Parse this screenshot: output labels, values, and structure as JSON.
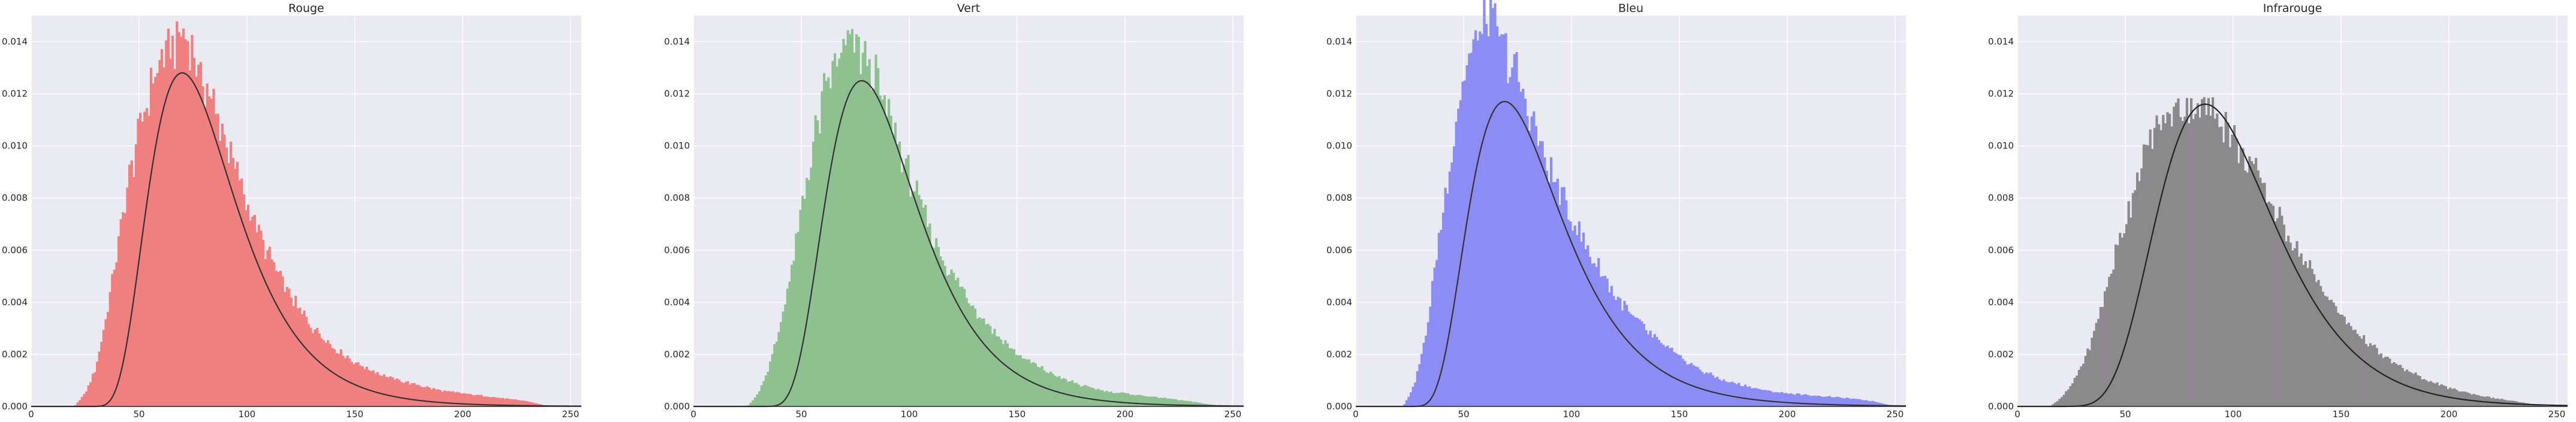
{
  "chart_data": [
    {
      "type": "histogram",
      "title": "Rouge",
      "color": "#f08080",
      "curve_color": "#333333",
      "xlim": [
        0,
        255
      ],
      "ylim": [
        0,
        0.015
      ],
      "xticks": [
        0,
        50,
        100,
        150,
        200,
        250
      ],
      "yticks": [
        0.0,
        0.002,
        0.004,
        0.006,
        0.008,
        0.01,
        0.012,
        0.014
      ],
      "xtick_labels": [
        "0",
        "50",
        "100",
        "150",
        "200",
        "250"
      ],
      "ytick_labels": [
        "0.000",
        "0.002",
        "0.004",
        "0.006",
        "0.008",
        "0.010",
        "0.012",
        "0.014"
      ],
      "grid": true,
      "histogram_range": [
        20,
        240
      ],
      "fit_curve": {
        "mode": 70,
        "peak": 0.0128,
        "sigma": 0.42,
        "start": 22
      },
      "hist_envelope": [
        [
          20,
          0.0
        ],
        [
          25,
          0.0005
        ],
        [
          30,
          0.0015
        ],
        [
          35,
          0.0035
        ],
        [
          40,
          0.006
        ],
        [
          45,
          0.0085
        ],
        [
          50,
          0.0105
        ],
        [
          55,
          0.0122
        ],
        [
          60,
          0.0133
        ],
        [
          65,
          0.014
        ],
        [
          70,
          0.0142
        ],
        [
          75,
          0.0135
        ],
        [
          80,
          0.0125
        ],
        [
          85,
          0.0115
        ],
        [
          90,
          0.0102
        ],
        [
          95,
          0.009
        ],
        [
          100,
          0.0078
        ],
        [
          110,
          0.0058
        ],
        [
          120,
          0.0042
        ],
        [
          130,
          0.0031
        ],
        [
          140,
          0.0023
        ],
        [
          150,
          0.0017
        ],
        [
          160,
          0.0013
        ],
        [
          170,
          0.001
        ],
        [
          180,
          0.0008
        ],
        [
          190,
          0.0006
        ],
        [
          200,
          0.0005
        ],
        [
          210,
          0.0004
        ],
        [
          220,
          0.0003
        ],
        [
          230,
          0.0002
        ],
        [
          240,
          0.0
        ]
      ]
    },
    {
      "type": "histogram",
      "title": "Vert",
      "color": "#8fc08f",
      "curve_color": "#333333",
      "xlim": [
        0,
        255
      ],
      "ylim": [
        0,
        0.015
      ],
      "xticks": [
        0,
        50,
        100,
        150,
        200,
        250
      ],
      "yticks": [
        0.0,
        0.002,
        0.004,
        0.006,
        0.008,
        0.01,
        0.012,
        0.014
      ],
      "xtick_labels": [
        "0",
        "50",
        "100",
        "150",
        "200",
        "250"
      ],
      "ytick_labels": [
        "0.000",
        "0.002",
        "0.004",
        "0.006",
        "0.008",
        "0.010",
        "0.012",
        "0.014"
      ],
      "grid": true,
      "histogram_range": [
        25,
        245
      ],
      "fit_curve": {
        "mode": 78,
        "peak": 0.0125,
        "sigma": 0.4,
        "start": 25
      },
      "hist_envelope": [
        [
          25,
          0.0
        ],
        [
          30,
          0.0005
        ],
        [
          35,
          0.0015
        ],
        [
          40,
          0.003
        ],
        [
          45,
          0.005
        ],
        [
          50,
          0.0075
        ],
        [
          55,
          0.0098
        ],
        [
          60,
          0.0118
        ],
        [
          65,
          0.013
        ],
        [
          70,
          0.0138
        ],
        [
          75,
          0.0139
        ],
        [
          80,
          0.0133
        ],
        [
          85,
          0.0124
        ],
        [
          90,
          0.0113
        ],
        [
          95,
          0.01
        ],
        [
          100,
          0.0088
        ],
        [
          110,
          0.0067
        ],
        [
          120,
          0.005
        ],
        [
          130,
          0.0038
        ],
        [
          140,
          0.0028
        ],
        [
          150,
          0.002
        ],
        [
          160,
          0.0015
        ],
        [
          170,
          0.0011
        ],
        [
          180,
          0.0008
        ],
        [
          190,
          0.0006
        ],
        [
          200,
          0.0005
        ],
        [
          210,
          0.0004
        ],
        [
          220,
          0.0003
        ],
        [
          230,
          0.0002
        ],
        [
          245,
          0.0
        ]
      ]
    },
    {
      "type": "histogram",
      "title": "Bleu",
      "color": "#8c8cf5",
      "curve_color": "#333333",
      "xlim": [
        0,
        255
      ],
      "ylim": [
        0,
        0.015
      ],
      "xticks": [
        0,
        50,
        100,
        150,
        200,
        250
      ],
      "yticks": [
        0.0,
        0.002,
        0.004,
        0.006,
        0.008,
        0.01,
        0.012,
        0.014
      ],
      "xtick_labels": [
        "0",
        "50",
        "100",
        "150",
        "200",
        "250"
      ],
      "ytick_labels": [
        "0.000",
        "0.002",
        "0.004",
        "0.006",
        "0.008",
        "0.010",
        "0.012",
        "0.014"
      ],
      "grid": true,
      "histogram_range": [
        22,
        250
      ],
      "fit_curve": {
        "mode": 69,
        "peak": 0.0117,
        "sigma": 0.44,
        "start": 20
      },
      "hist_envelope": [
        [
          22,
          0.0
        ],
        [
          27,
          0.0008
        ],
        [
          32,
          0.0025
        ],
        [
          37,
          0.0055
        ],
        [
          42,
          0.0085
        ],
        [
          47,
          0.0112
        ],
        [
          52,
          0.0132
        ],
        [
          57,
          0.0145
        ],
        [
          62,
          0.0148
        ],
        [
          67,
          0.0142
        ],
        [
          72,
          0.0132
        ],
        [
          77,
          0.012
        ],
        [
          82,
          0.0108
        ],
        [
          87,
          0.0097
        ],
        [
          92,
          0.0086
        ],
        [
          100,
          0.0072
        ],
        [
          110,
          0.0056
        ],
        [
          120,
          0.0043
        ],
        [
          130,
          0.0033
        ],
        [
          140,
          0.0025
        ],
        [
          150,
          0.0019
        ],
        [
          160,
          0.0014
        ],
        [
          170,
          0.001
        ],
        [
          180,
          0.0008
        ],
        [
          190,
          0.0006
        ],
        [
          200,
          0.0005
        ],
        [
          215,
          0.0004
        ],
        [
          230,
          0.0003
        ],
        [
          240,
          0.0002
        ],
        [
          250,
          0.0
        ]
      ]
    },
    {
      "type": "histogram",
      "title": "Infrarouge",
      "color": "#8b898b",
      "curve_color": "#222222",
      "xlim": [
        0,
        255
      ],
      "ylim": [
        0,
        0.015
      ],
      "xticks": [
        0,
        50,
        100,
        150,
        200,
        250
      ],
      "yticks": [
        0.0,
        0.002,
        0.004,
        0.006,
        0.008,
        0.01,
        0.012,
        0.014
      ],
      "xtick_labels": [
        "0",
        "50",
        "100",
        "150",
        "200",
        "250"
      ],
      "ytick_labels": [
        "0.000",
        "0.002",
        "0.004",
        "0.006",
        "0.008",
        "0.010",
        "0.012",
        "0.014"
      ],
      "grid": true,
      "histogram_range": [
        15,
        245
      ],
      "fit_curve": {
        "mode": 87,
        "peak": 0.0116,
        "sigma": 0.32,
        "start": 2
      },
      "hist_envelope": [
        [
          15,
          0.0
        ],
        [
          20,
          0.0003
        ],
        [
          25,
          0.0008
        ],
        [
          30,
          0.0016
        ],
        [
          35,
          0.0027
        ],
        [
          40,
          0.0041
        ],
        [
          45,
          0.0057
        ],
        [
          50,
          0.0072
        ],
        [
          55,
          0.0086
        ],
        [
          60,
          0.0098
        ],
        [
          65,
          0.0107
        ],
        [
          70,
          0.0112
        ],
        [
          75,
          0.0114
        ],
        [
          80,
          0.0115
        ],
        [
          85,
          0.0116
        ],
        [
          90,
          0.0114
        ],
        [
          95,
          0.011
        ],
        [
          100,
          0.0104
        ],
        [
          110,
          0.009
        ],
        [
          120,
          0.0075
        ],
        [
          130,
          0.006
        ],
        [
          140,
          0.0047
        ],
        [
          150,
          0.0035
        ],
        [
          160,
          0.0026
        ],
        [
          170,
          0.0019
        ],
        [
          180,
          0.0014
        ],
        [
          190,
          0.001
        ],
        [
          200,
          0.0007
        ],
        [
          215,
          0.0004
        ],
        [
          230,
          0.0002
        ],
        [
          245,
          0.0
        ]
      ]
    }
  ]
}
